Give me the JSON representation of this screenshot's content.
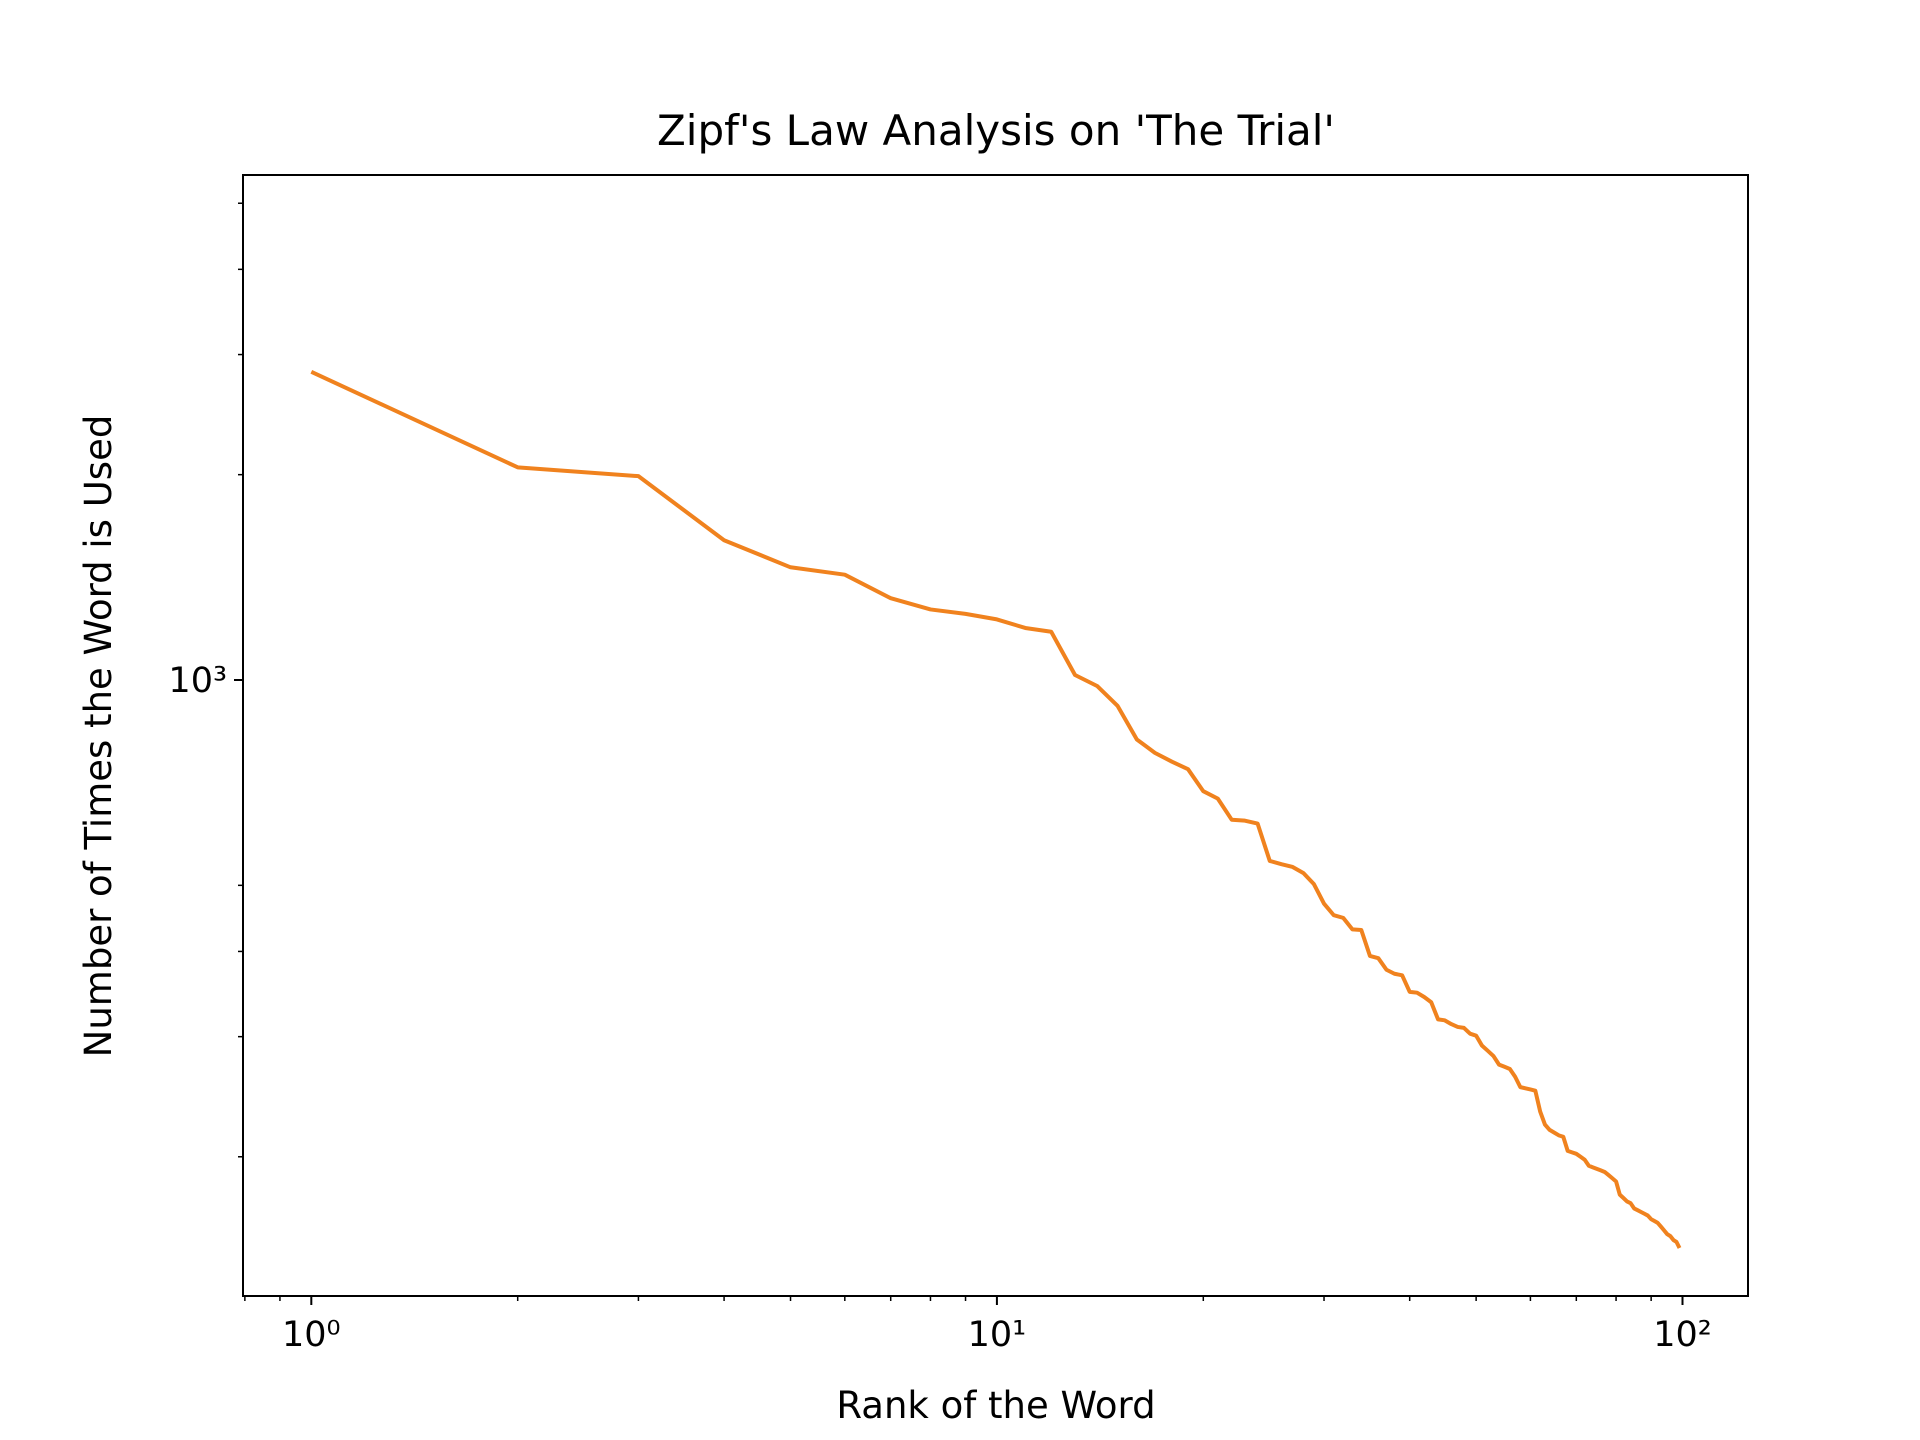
{
  "chart_data": {
    "type": "line",
    "title": "Zipf's Law Analysis on 'The Trial'",
    "xlabel": "Rank of the Word",
    "ylabel": "Number of Times the Word is Used",
    "xscale": "log",
    "yscale": "log",
    "grid": false,
    "x": [
      1,
      2,
      3,
      4,
      5,
      6,
      7,
      8,
      9,
      10,
      11,
      12,
      13,
      14,
      15,
      16,
      17,
      18,
      19,
      20,
      21,
      22,
      23,
      24,
      25,
      26,
      27,
      28,
      29,
      30,
      31,
      32,
      33,
      34,
      35,
      36,
      37,
      38,
      39,
      40,
      41,
      42,
      43,
      44,
      45,
      46,
      47,
      48,
      49,
      50,
      51,
      52,
      53,
      54,
      55,
      56,
      57,
      58,
      59,
      60,
      61,
      62,
      63,
      64,
      65,
      66,
      67,
      68,
      69,
      70,
      71,
      72,
      73,
      74,
      75,
      76,
      77,
      78,
      79,
      80,
      81,
      82,
      83,
      84,
      85,
      86,
      87,
      88,
      89,
      90,
      91,
      92,
      93,
      94,
      95,
      96,
      97,
      98,
      99
    ],
    "series": [
      {
        "color": "#f0821e",
        "values": [
          2830,
          2050,
          1990,
          1603,
          1463,
          1427,
          1318,
          1269,
          1250,
          1227,
          1192,
          1177,
          1017,
          980,
          916,
          818,
          782,
          759,
          740,
          687,
          670,
          624,
          622,
          616,
          543,
          537,
          532,
          521,
          502,
          470,
          452,
          448,
          431,
          430,
          394,
          391,
          376,
          371,
          369,
          349,
          348,
          343,
          337,
          318,
          317,
          313,
          310,
          309,
          303,
          301,
          291,
          286,
          281,
          273,
          271,
          269,
          262,
          253,
          252,
          251,
          250,
          233,
          223,
          219,
          217,
          215,
          214,
          204,
          203,
          202,
          200,
          198,
          194,
          193,
          192,
          191,
          190,
          188,
          186,
          184,
          176,
          174,
          172,
          171,
          168,
          167,
          166,
          165,
          164,
          162,
          161,
          160,
          158,
          156,
          154,
          153,
          151,
          150,
          147
        ]
      }
    ],
    "xlim": [
      0.795,
      124.6
    ],
    "ylim": [
      125,
      5500
    ],
    "xticks": [
      {
        "value": 1,
        "label": "10⁰"
      },
      {
        "value": 10,
        "label": "10¹"
      },
      {
        "value": 100,
        "label": "10²"
      }
    ],
    "xminorticks": [
      0.8,
      0.9,
      2,
      3,
      4,
      5,
      6,
      7,
      8,
      9,
      20,
      30,
      40,
      50,
      60,
      70,
      80,
      90
    ],
    "yticks": [
      {
        "value": 1000,
        "label": "10³"
      }
    ],
    "yminorticks": [
      200,
      300,
      400,
      500,
      2000,
      3000,
      4000,
      5000
    ]
  }
}
